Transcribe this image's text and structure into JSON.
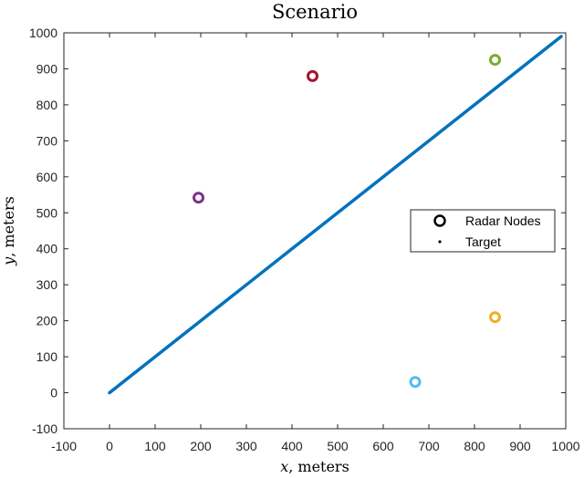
{
  "chart_data": {
    "type": "scatter",
    "title": "Scenario",
    "xlabel": {
      "var": "x",
      "unit": ", meters"
    },
    "ylabel": {
      "var": "y",
      "unit": ", meters"
    },
    "xlim": [
      -100,
      1000
    ],
    "ylim": [
      -100,
      1000
    ],
    "xticks": [
      -100,
      0,
      100,
      200,
      300,
      400,
      500,
      600,
      700,
      800,
      900,
      1000
    ],
    "yticks": [
      -100,
      0,
      100,
      200,
      300,
      400,
      500,
      600,
      700,
      800,
      900,
      1000
    ],
    "grid": false,
    "legend": {
      "placement": "right",
      "entries": [
        {
          "label": "Radar Nodes",
          "marker": "circle-open"
        },
        {
          "label": "Target",
          "marker": "dot"
        }
      ]
    },
    "series": [
      {
        "name": "Radar Nodes",
        "kind": "points",
        "points": [
          {
            "x": 445,
            "y": 880,
            "color": "#A2142F"
          },
          {
            "x": 845,
            "y": 925,
            "color": "#77AC30"
          },
          {
            "x": 195,
            "y": 542,
            "color": "#7E2F8E"
          },
          {
            "x": 845,
            "y": 210,
            "color": "#EDB120"
          },
          {
            "x": 670,
            "y": 30,
            "color": "#4DBEEE"
          }
        ]
      },
      {
        "name": "Target",
        "kind": "line",
        "color": "#0072BD",
        "points": [
          {
            "x": 0,
            "y": 0
          },
          {
            "x": 990,
            "y": 990
          }
        ]
      }
    ]
  }
}
